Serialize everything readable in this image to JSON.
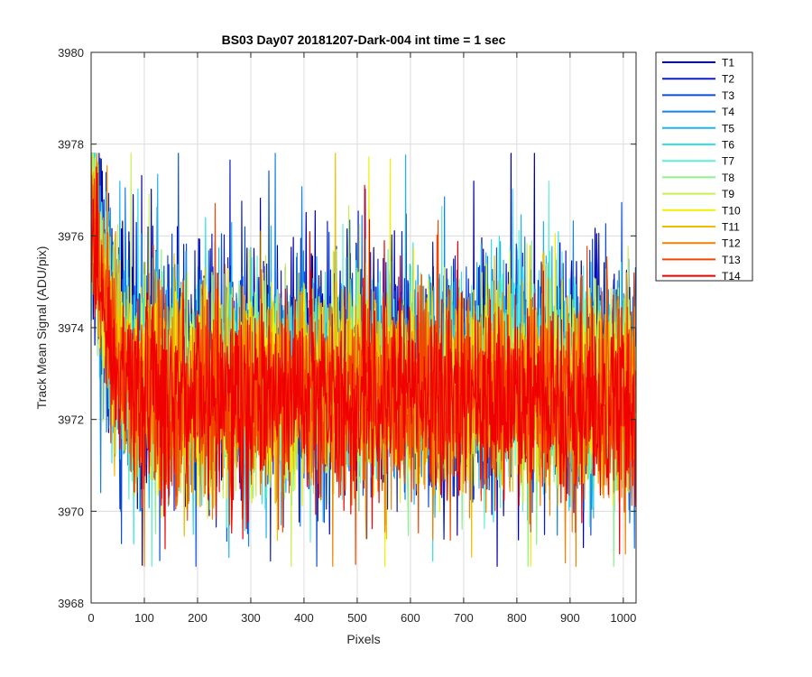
{
  "chart_data": {
    "type": "line",
    "title": "BS03 Day07 20181207-Dark-004 int time = 1 sec",
    "xlabel": "Pixels",
    "ylabel": "Track Mean Signal (ADU/pix)",
    "xlim": [
      0,
      1024
    ],
    "ylim": [
      3968,
      3980
    ],
    "xticks": [
      0,
      100,
      200,
      300,
      400,
      500,
      600,
      700,
      800,
      900,
      1000
    ],
    "yticks": [
      3968,
      3970,
      3972,
      3974,
      3976,
      3978,
      3980
    ],
    "grid": true,
    "legend_position": "outside-top-right",
    "n_points": 1024,
    "noise_model": {
      "description": "Each series is a noisy dark-signal track: an initial decay near pixel 0 followed by a flat level with random noise.",
      "start_value": 3977.5,
      "decay_pixels": 25,
      "spike_max": 3977.8,
      "dip_min": 3968.8
    },
    "series": [
      {
        "name": "T1",
        "color": "#0000a8",
        "level": 3973.1,
        "noise": 1.25
      },
      {
        "name": "T2",
        "color": "#0a1ec8",
        "level": 3973.0,
        "noise": 1.2
      },
      {
        "name": "T3",
        "color": "#0b4fd8",
        "level": 3973.0,
        "noise": 1.15
      },
      {
        "name": "T4",
        "color": "#1482e6",
        "level": 3972.9,
        "noise": 1.1
      },
      {
        "name": "T5",
        "color": "#1eb4f0",
        "level": 3972.9,
        "noise": 1.1
      },
      {
        "name": "T6",
        "color": "#2ee0f0",
        "level": 3972.8,
        "noise": 1.05
      },
      {
        "name": "T7",
        "color": "#5ef0d0",
        "level": 3972.8,
        "noise": 1.05
      },
      {
        "name": "T8",
        "color": "#8cf08c",
        "level": 3972.7,
        "noise": 1.05
      },
      {
        "name": "T9",
        "color": "#c8f050",
        "level": 3972.7,
        "noise": 1.05
      },
      {
        "name": "T10",
        "color": "#f0f000",
        "level": 3972.6,
        "noise": 1.05
      },
      {
        "name": "T11",
        "color": "#f0be00",
        "level": 3972.6,
        "noise": 1.05
      },
      {
        "name": "T12",
        "color": "#f08200",
        "level": 3972.5,
        "noise": 1.05
      },
      {
        "name": "T13",
        "color": "#f04600",
        "level": 3972.5,
        "noise": 1.05
      },
      {
        "name": "T14",
        "color": "#f00000",
        "level": 3972.5,
        "noise": 1.0
      }
    ]
  }
}
